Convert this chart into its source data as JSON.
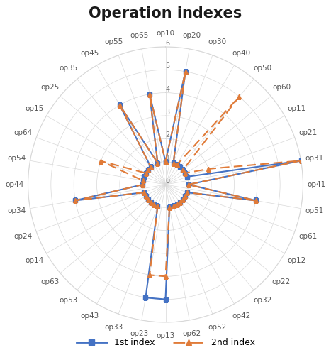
{
  "title": "Operation indexes",
  "categories": [
    "op10",
    "op20",
    "op30",
    "op40",
    "op50",
    "op60",
    "op11",
    "op21",
    "op31",
    "op41",
    "op51",
    "op61",
    "op12",
    "op22",
    "op32",
    "op42",
    "op52",
    "op62",
    "op13",
    "op23",
    "op33",
    "op43",
    "op53",
    "op63",
    "op14",
    "op24",
    "op34",
    "op44",
    "op54",
    "op64",
    "op15",
    "op25",
    "op35",
    "op45",
    "op55",
    "op65"
  ],
  "values1": [
    1,
    5,
    1,
    1,
    1,
    1,
    1,
    1,
    6,
    1,
    4,
    1,
    1,
    1,
    1,
    1,
    1,
    1,
    5,
    5,
    1,
    1,
    1,
    1,
    1,
    1,
    4,
    1,
    1,
    1,
    1,
    1,
    1,
    4,
    1,
    4
  ],
  "values2": [
    1,
    5,
    1,
    1,
    5,
    1,
    1,
    2,
    6,
    1,
    4,
    1,
    1,
    1,
    1,
    1,
    1,
    1,
    4,
    4,
    1,
    1,
    1,
    1,
    1,
    1,
    4,
    1,
    1,
    3,
    1,
    1,
    1,
    4,
    1,
    4
  ],
  "color1": "#4472C4",
  "color2": "#E07B39",
  "rlim_min": 0,
  "rlim_max": 6,
  "rticks": [
    0,
    1,
    2,
    3,
    4,
    5,
    6
  ],
  "title_fontsize": 15,
  "label_fontsize": 7.5,
  "tick_fontsize": 7,
  "figwidth": 4.67,
  "figheight": 5.0,
  "dpi": 100,
  "legend_fontsize": 9,
  "grid_color": "#d8d8d8",
  "label_color": "#555555",
  "tick_color": "#777777",
  "title_color": "#1a1a1a"
}
